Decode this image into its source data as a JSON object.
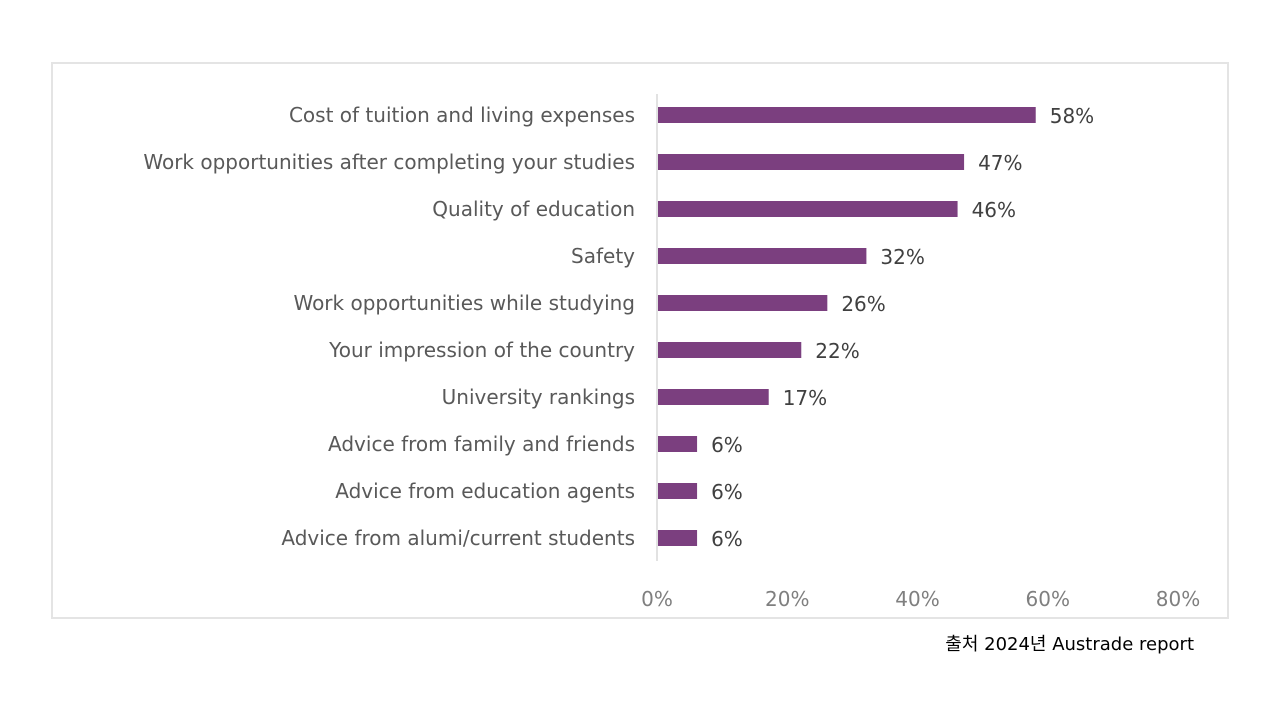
{
  "source_note": "출처 2024년 Austrade report",
  "colors": {
    "bar": "#7b3f7f",
    "axis": "#d9d9d9"
  },
  "chart_data": {
    "type": "bar",
    "orientation": "horizontal",
    "title": "",
    "xlabel": "",
    "ylabel": "",
    "categories": [
      "Cost of tuition and living expenses",
      "Work opportunities after completing your studies",
      "Quality of education",
      "Safety",
      "Work opportunities while studying",
      "Your impression of the country",
      "University rankings",
      "Advice from family and friends",
      "Advice from education agents",
      "Advice from alumi/current students"
    ],
    "values": [
      58,
      47,
      46,
      32,
      26,
      22,
      17,
      6,
      6,
      6
    ],
    "value_labels": [
      "58%",
      "47%",
      "46%",
      "32%",
      "26%",
      "22%",
      "17%",
      "6%",
      "6%",
      "6%"
    ],
    "xlim": [
      0,
      80
    ],
    "ticks": [
      0,
      20,
      40,
      60,
      80
    ],
    "tick_labels": [
      "0%",
      "20%",
      "40%",
      "60%",
      "80%"
    ],
    "grid": false,
    "legend": "none"
  }
}
